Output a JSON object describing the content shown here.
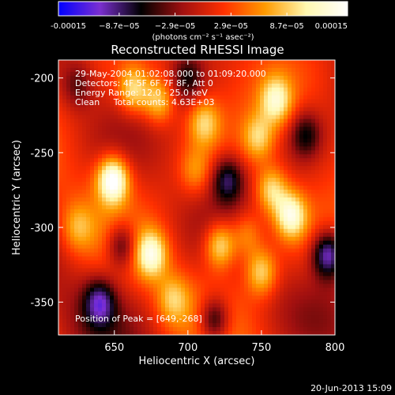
{
  "chart_data": {
    "type": "heatmap",
    "title": "Reconstructed RHESSI Image",
    "xlabel": "Heliocentric X (arcsec)",
    "ylabel": "Heliocentric Y (arcsec)",
    "xlim": [
      612,
      800
    ],
    "ylim": [
      -372,
      -188
    ],
    "x_ticks": [
      650,
      700,
      750,
      800
    ],
    "y_ticks": [
      -200,
      -250,
      -300,
      -350
    ],
    "colorbar": {
      "range": [
        -0.00015,
        0.00015
      ],
      "tick_values": [
        -0.00015,
        -8.7e-05,
        -2.9e-05,
        2.9e-05,
        8.7e-05,
        0.00015
      ],
      "tick_labels": [
        "-0.00015",
        "−8.7e−05",
        "−2.9e−05",
        "2.9e−05",
        "8.7e−05",
        "0.00015"
      ],
      "unit_label": "(photons cm⁻² s⁻¹ asec⁻²)",
      "colors": [
        "#0000ff",
        "#7b2fd1",
        "#000000",
        "#a01010",
        "#ff3000",
        "#ff9a00",
        "#fff8b0",
        "#ffffff"
      ]
    },
    "annotations": [
      "29-May-2004 01:02:08.000 to 01:09:20.000",
      "Detectors: 4F 5F 6F 7F 8F, Att 0",
      "Energy Range: 12.0 - 25.0 keV",
      "Clean     Total counts: 4.63E+03"
    ],
    "peak_label": "Position of Peak = [649,-268]",
    "peak": [
      649,
      -268
    ],
    "sources": [
      {
        "x": 649,
        "y": -268,
        "value": 0.00015
      },
      {
        "x": 663,
        "y": -208,
        "value": 9e-05
      },
      {
        "x": 680,
        "y": -215,
        "value": 8.7e-05
      },
      {
        "x": 711,
        "y": -230,
        "value": 7.5e-05
      },
      {
        "x": 760,
        "y": -215,
        "value": 9.5e-05
      },
      {
        "x": 748,
        "y": -240,
        "value": 7.5e-05
      },
      {
        "x": 705,
        "y": -262,
        "value": 5e-05
      },
      {
        "x": 757,
        "y": -275,
        "value": 9e-05
      },
      {
        "x": 770,
        "y": -292,
        "value": 0.000115
      },
      {
        "x": 740,
        "y": -305,
        "value": 6e-05
      },
      {
        "x": 722,
        "y": -312,
        "value": 0.000105
      },
      {
        "x": 675,
        "y": -318,
        "value": 0.000108
      },
      {
        "x": 750,
        "y": -330,
        "value": 8.5e-05
      },
      {
        "x": 690,
        "y": -348,
        "value": 6e-05
      },
      {
        "x": 625,
        "y": -300,
        "value": 5e-05
      },
      {
        "x": 655,
        "y": -312,
        "value": -8.7e-05
      },
      {
        "x": 727,
        "y": -268,
        "value": -8.7e-05
      },
      {
        "x": 795,
        "y": -318,
        "value": -0.00012
      },
      {
        "x": 718,
        "y": -362,
        "value": -0.0001
      },
      {
        "x": 640,
        "y": -350,
        "value": -9e-05
      },
      {
        "x": 625,
        "y": -205,
        "value": -5e-05
      },
      {
        "x": 780,
        "y": -238,
        "value": -7e-05
      },
      {
        "x": 700,
        "y": -200,
        "value": -6e-05
      }
    ]
  },
  "footer": {
    "timestamp": "20-Jun-2013 15:09"
  },
  "colors": {
    "background": "#000000",
    "text": "#ffffff"
  }
}
